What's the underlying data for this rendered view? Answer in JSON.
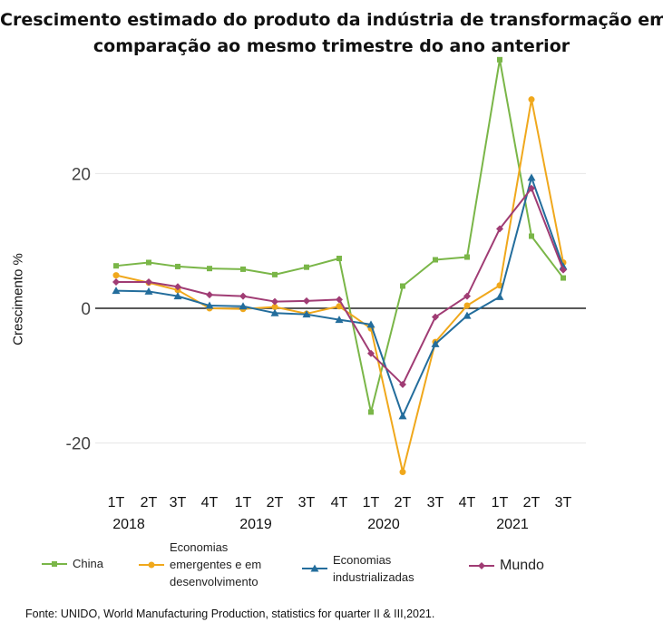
{
  "title_lines": [
    "Crescimento estimado do produto da indústria de transformação em",
    "comparação ao mesmo trimestre do ano anterior"
  ],
  "source": "Fonte: UNIDO, World Manufacturing Production, statistics for quarter II & III,2021.",
  "legend": {
    "china": "China",
    "emergentes": [
      "Economias",
      "emergentes e em",
      "desenvolvimento"
    ],
    "industrializadas": [
      "Economias",
      "industrializadas"
    ],
    "mundo": "Mundo"
  },
  "chart_data": {
    "type": "line",
    "title": "Crescimento estimado do produto da indústria de transformação em comparação ao mesmo trimestre do ano anterior",
    "ylabel": "Crescimento %",
    "xlabel": "",
    "ylim": [
      -27,
      40
    ],
    "yticks": [
      -20,
      0,
      20
    ],
    "grid": true,
    "categories": [
      "1T 2018",
      "2T 2018",
      "3T 2018",
      "4T 2018",
      "1T 2019",
      "2T 2019",
      "3T 2019",
      "4T 2019",
      "1T 2020",
      "2T 2020",
      "3T 2020",
      "4T 2020",
      "1T 2021",
      "2T 2021",
      "3T 2021"
    ],
    "quarter_labels": [
      "1T",
      "2T",
      "3T",
      "4T",
      "1T",
      "2T",
      "3T",
      "4T",
      "1T",
      "2T",
      "3T",
      "4T",
      "1T",
      "2T",
      "3T"
    ],
    "year_labels": [
      {
        "label": "2018",
        "index": 0
      },
      {
        "label": "2019",
        "index": 4
      },
      {
        "label": "2020",
        "index": 8
      },
      {
        "label": "2021",
        "index": 12
      }
    ],
    "series": [
      {
        "name": "China",
        "color": "#7ab648",
        "marker": "square",
        "values": [
          6.3,
          6.8,
          6.2,
          5.9,
          5.8,
          5.0,
          6.1,
          7.4,
          -15.4,
          3.3,
          7.2,
          7.6,
          36.9,
          10.7,
          4.5
        ]
      },
      {
        "name": "Economias emergentes e em desenvolvimento",
        "color": "#f0a81c",
        "marker": "circle",
        "values": [
          4.9,
          3.8,
          2.7,
          0.0,
          -0.1,
          0.2,
          -0.8,
          0.3,
          -3.0,
          -24.3,
          -5.0,
          0.4,
          3.4,
          31.0,
          6.8
        ]
      },
      {
        "name": "Economias industrializadas",
        "color": "#236d9c",
        "marker": "triangle",
        "values": [
          2.6,
          2.5,
          1.8,
          0.4,
          0.3,
          -0.7,
          -0.9,
          -1.7,
          -2.4,
          -16.0,
          -5.3,
          -1.1,
          1.7,
          19.4,
          6.2
        ]
      },
      {
        "name": "Mundo",
        "color": "#a03c74",
        "marker": "diamond",
        "values": [
          3.9,
          3.9,
          3.2,
          2.0,
          1.8,
          1.0,
          1.1,
          1.3,
          -6.7,
          -11.3,
          -1.3,
          1.8,
          11.8,
          17.8,
          5.7
        ]
      }
    ]
  }
}
